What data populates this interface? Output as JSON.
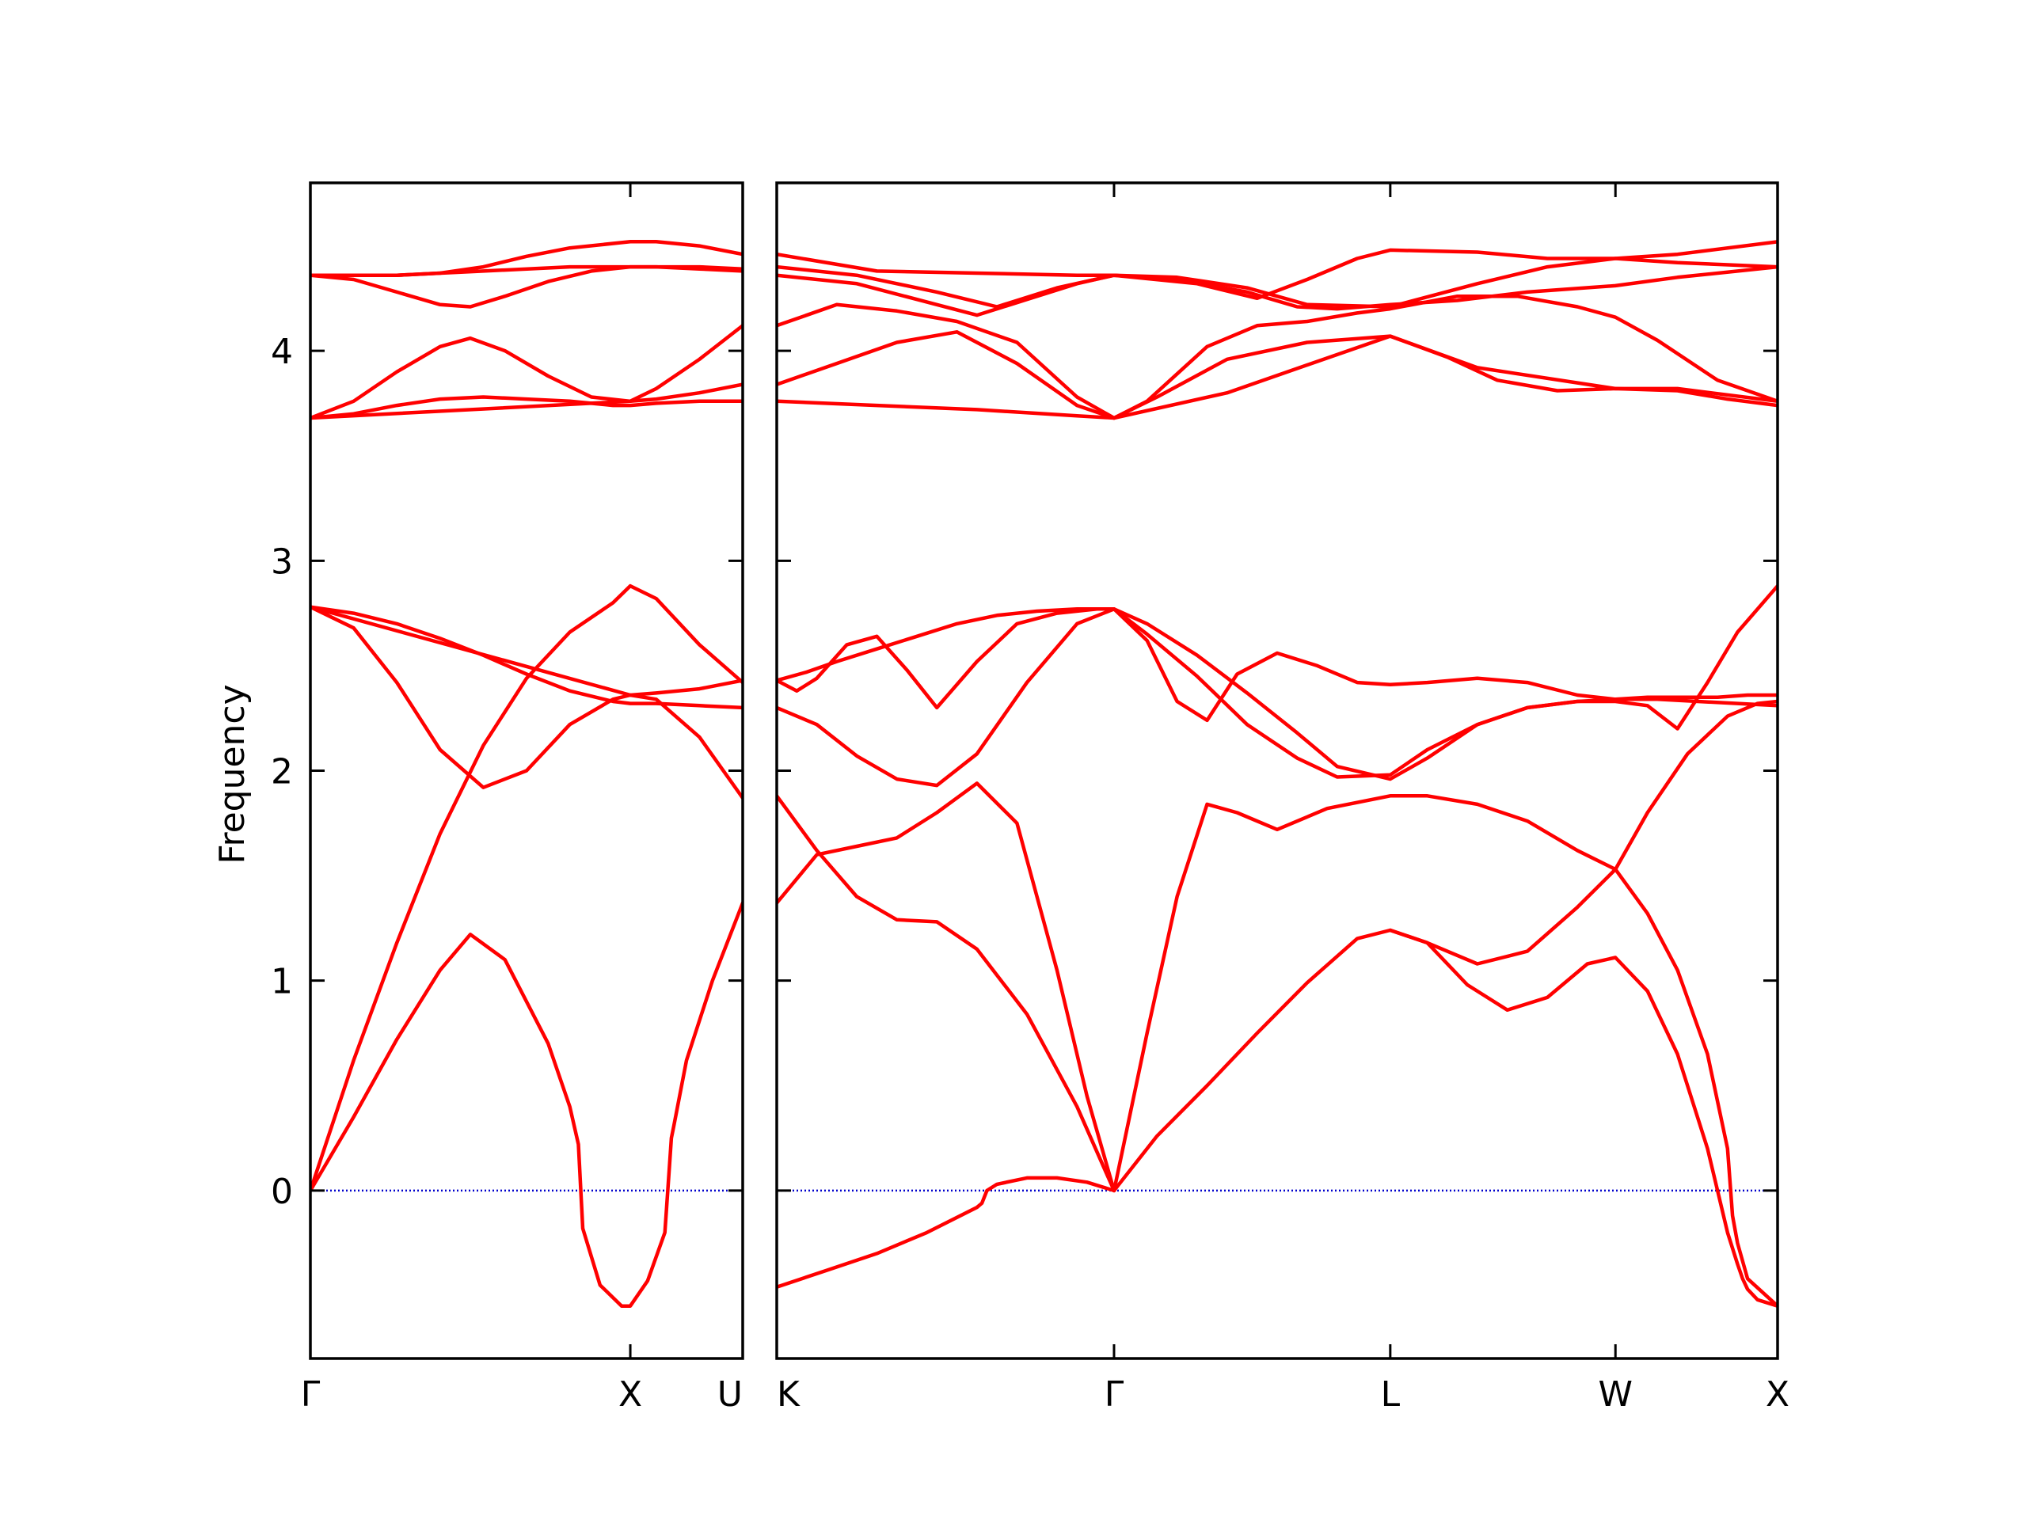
{
  "chart_data": {
    "type": "line",
    "ylabel": "Frequency",
    "xlabel": "",
    "ylim": [
      -0.8,
      4.8
    ],
    "yticks": [
      0,
      1,
      2,
      3,
      4
    ],
    "ytick_labels": [
      "0",
      "1",
      "2",
      "3",
      "4"
    ],
    "grid": false,
    "colors": {
      "band": "#ff0000",
      "zero_line": "#0000cc",
      "axes": "#000000"
    },
    "panels": [
      {
        "name": "panel-gamma-x-u",
        "xlim": [
          0,
          1
        ],
        "xticks": [
          0,
          0.74,
          1
        ],
        "xtick_labels": [
          "Γ",
          "X",
          "U"
        ],
        "bands": [
          {
            "x": [
              0,
              0.1,
              0.2,
              0.3,
              0.37,
              0.45,
              0.55,
              0.6,
              0.62,
              0.63,
              0.67,
              0.72,
              0.74,
              0.78,
              0.82,
              0.83,
              0.835,
              0.84,
              0.87,
              0.93,
              1
            ],
            "y": [
              0,
              0.35,
              0.72,
              1.05,
              1.22,
              1.1,
              0.7,
              0.4,
              0.22,
              -0.18,
              -0.45,
              -0.55,
              -0.55,
              -0.43,
              -0.2,
              0.1,
              0.25,
              0.3,
              0.62,
              1.0,
              1.37
            ]
          },
          {
            "x": [
              0,
              0.1,
              0.2,
              0.3,
              0.4,
              0.5,
              0.6,
              0.7,
              0.74,
              0.8,
              0.9,
              1
            ],
            "y": [
              0,
              0.62,
              1.18,
              1.7,
              2.12,
              2.44,
              2.66,
              2.8,
              2.88,
              2.82,
              2.6,
              2.42
            ]
          },
          {
            "x": [
              0,
              0.1,
              0.2,
              0.3,
              0.4,
              0.5,
              0.6,
              0.7,
              0.74,
              0.8,
              0.9,
              1
            ],
            "y": [
              2.78,
              2.68,
              2.42,
              2.1,
              1.92,
              2.0,
              2.22,
              2.34,
              2.36,
              2.34,
              2.16,
              1.87
            ]
          },
          {
            "x": [
              0,
              0.1,
              0.2,
              0.3,
              0.4,
              0.5,
              0.6,
              0.7,
              0.74,
              0.8,
              0.9,
              1
            ],
            "y": [
              2.78,
              2.75,
              2.7,
              2.63,
              2.55,
              2.46,
              2.38,
              2.33,
              2.32,
              2.32,
              2.31,
              2.3
            ]
          },
          {
            "x": [
              0,
              0.74,
              0.8,
              0.9,
              1
            ],
            "y": [
              2.78,
              2.36,
              2.37,
              2.39,
              2.43
            ]
          },
          {
            "x": [
              0,
              0.1,
              0.2,
              0.3,
              0.4,
              0.5,
              0.6,
              0.7,
              0.74,
              0.8,
              0.9,
              1
            ],
            "y": [
              3.68,
              3.7,
              3.74,
              3.77,
              3.78,
              3.77,
              3.76,
              3.74,
              3.74,
              3.75,
              3.76,
              3.76
            ]
          },
          {
            "x": [
              0,
              0.1,
              0.2,
              0.3,
              0.37,
              0.45,
              0.55,
              0.65,
              0.74,
              0.8,
              0.9,
              1
            ],
            "y": [
              3.68,
              3.76,
              3.9,
              4.02,
              4.06,
              4.0,
              3.88,
              3.78,
              3.76,
              3.77,
              3.8,
              3.84
            ]
          },
          {
            "x": [
              0,
              0.74,
              0.8,
              0.9,
              1
            ],
            "y": [
              3.68,
              3.76,
              3.82,
              3.96,
              4.12
            ]
          },
          {
            "x": [
              0,
              0.1,
              0.2,
              0.3,
              0.37,
              0.45,
              0.55,
              0.65,
              0.74,
              0.8,
              0.9,
              1
            ],
            "y": [
              4.36,
              4.34,
              4.28,
              4.22,
              4.21,
              4.26,
              4.33,
              4.38,
              4.4,
              4.4,
              4.39,
              4.38
            ]
          },
          {
            "x": [
              0,
              0.1,
              0.2,
              0.3,
              0.4,
              0.5,
              0.6,
              0.74,
              0.8,
              0.9,
              1
            ],
            "y": [
              4.36,
              4.36,
              4.36,
              4.37,
              4.4,
              4.45,
              4.49,
              4.52,
              4.52,
              4.5,
              4.46
            ]
          },
          {
            "x": [
              0,
              0.2,
              0.4,
              0.6,
              0.74,
              0.9,
              1
            ],
            "y": [
              4.36,
              4.36,
              4.38,
              4.4,
              4.4,
              4.4,
              4.39
            ]
          }
        ],
        "zero_line": {
          "x": [
            0,
            1
          ],
          "y": [
            0,
            0
          ]
        }
      },
      {
        "name": "panel-k-gamma-l-w-x",
        "xlim": [
          0,
          1
        ],
        "xticks": [
          0,
          0.337,
          0.613,
          0.838,
          1
        ],
        "xtick_labels": [
          "K",
          "Γ",
          "L",
          "W",
          "X"
        ],
        "bands": [
          {
            "x": [
              0,
              0.05,
              0.1,
              0.15,
              0.2,
              0.205,
              0.21,
              0.22,
              0.25,
              0.28,
              0.31,
              0.337
            ],
            "y": [
              -0.46,
              -0.38,
              -0.3,
              -0.2,
              -0.08,
              -0.06,
              0.0,
              0.03,
              0.06,
              0.06,
              0.04,
              0.0
            ]
          },
          {
            "x": [
              0.337,
              0.38,
              0.43,
              0.48,
              0.53,
              0.58,
              0.613,
              0.65,
              0.69,
              0.73,
              0.77,
              0.81,
              0.838,
              0.87,
              0.9,
              0.93,
              0.95,
              0.96,
              0.965,
              0.97,
              0.98,
              1
            ],
            "y": [
              0.0,
              0.26,
              0.5,
              0.75,
              0.99,
              1.2,
              1.24,
              1.18,
              0.98,
              0.86,
              0.92,
              1.08,
              1.11,
              0.95,
              0.65,
              0.2,
              -0.2,
              -0.35,
              -0.42,
              -0.47,
              -0.52,
              -0.55
            ]
          },
          {
            "x": [
              0,
              0.04,
              0.08,
              0.12,
              0.16,
              0.2,
              0.25,
              0.3,
              0.337
            ],
            "y": [
              1.88,
              1.62,
              1.4,
              1.29,
              1.28,
              1.15,
              0.84,
              0.4,
              0.0
            ]
          },
          {
            "x": [
              0.337,
              0.37,
              0.4,
              0.43,
              0.46,
              0.5,
              0.55,
              0.613,
              0.65,
              0.7,
              0.75,
              0.8,
              0.838,
              0.87,
              0.9,
              0.93,
              0.95,
              0.955,
              0.96,
              0.97,
              1
            ],
            "y": [
              0.0,
              0.75,
              1.4,
              1.84,
              1.8,
              1.72,
              1.82,
              1.88,
              1.88,
              1.84,
              1.76,
              1.62,
              1.53,
              1.32,
              1.05,
              0.65,
              0.2,
              -0.12,
              -0.25,
              -0.42,
              -0.55
            ]
          },
          {
            "x": [
              0.613,
              0.65,
              0.7,
              0.75,
              0.8,
              0.838,
              0.87,
              0.91,
              0.95,
              0.98,
              1
            ],
            "y": [
              1.24,
              1.18,
              1.08,
              1.14,
              1.35,
              1.53,
              1.8,
              2.08,
              2.26,
              2.32,
              2.33
            ]
          },
          {
            "x": [
              0,
              0.04,
              0.08,
              0.12,
              0.16,
              0.2,
              0.24,
              0.28,
              0.31,
              0.337
            ],
            "y": [
              1.37,
              1.6,
              1.64,
              1.68,
              1.8,
              1.94,
              1.75,
              1.05,
              0.45,
              0.0
            ]
          },
          {
            "x": [
              0,
              0.04,
              0.08,
              0.12,
              0.16,
              0.2,
              0.25,
              0.3,
              0.337,
              0.37,
              0.42,
              0.47,
              0.52,
              0.56,
              0.613,
              0.65,
              0.7,
              0.75,
              0.8,
              0.838,
              0.88,
              0.92,
              0.96,
              1
            ],
            "y": [
              2.3,
              2.22,
              2.07,
              1.96,
              1.93,
              2.08,
              2.42,
              2.7,
              2.77,
              2.65,
              2.45,
              2.22,
              2.06,
              1.97,
              1.98,
              2.1,
              2.22,
              2.3,
              2.33,
              2.34,
              2.34,
              2.33,
              2.32,
              2.31
            ]
          },
          {
            "x": [
              0,
              0.03,
              0.06,
              0.1,
              0.14,
              0.18,
              0.22,
              0.26,
              0.3,
              0.337,
              0.37,
              0.42,
              0.47,
              0.52,
              0.56,
              0.613,
              0.65,
              0.7,
              0.75,
              0.8,
              0.838,
              0.87,
              0.9,
              0.93,
              0.96,
              1
            ],
            "y": [
              2.43,
              2.47,
              2.52,
              2.58,
              2.64,
              2.7,
              2.74,
              2.76,
              2.77,
              2.77,
              2.7,
              2.55,
              2.37,
              2.18,
              2.02,
              1.96,
              2.06,
              2.22,
              2.3,
              2.33,
              2.33,
              2.31,
              2.2,
              2.42,
              2.66,
              2.88
            ]
          },
          {
            "x": [
              0,
              0.02,
              0.04,
              0.07,
              0.1,
              0.13,
              0.16,
              0.2,
              0.24,
              0.28,
              0.32,
              0.337,
              0.37,
              0.4,
              0.43,
              0.46,
              0.5,
              0.54,
              0.58,
              0.613,
              0.65,
              0.7,
              0.75,
              0.8,
              0.838,
              0.87,
              0.9,
              0.94,
              0.97,
              1
            ],
            "y": [
              2.43,
              2.38,
              2.44,
              2.6,
              2.64,
              2.48,
              2.3,
              2.52,
              2.7,
              2.75,
              2.77,
              2.77,
              2.62,
              2.33,
              2.24,
              2.46,
              2.56,
              2.5,
              2.42,
              2.41,
              2.42,
              2.44,
              2.42,
              2.36,
              2.34,
              2.35,
              2.35,
              2.35,
              2.36,
              2.36
            ]
          },
          {
            "x": [
              0,
              0.1,
              0.2,
              0.3,
              0.337,
              0.45,
              0.613,
              0.7,
              0.838,
              0.9,
              1
            ],
            "y": [
              3.76,
              3.74,
              3.72,
              3.69,
              3.68,
              3.8,
              4.07,
              3.92,
              3.82,
              3.82,
              3.76
            ]
          },
          {
            "x": [
              0,
              0.06,
              0.12,
              0.18,
              0.24,
              0.3,
              0.337,
              0.38,
              0.45,
              0.53,
              0.613,
              0.67,
              0.72,
              0.78,
              0.838,
              0.9,
              0.95,
              1
            ],
            "y": [
              3.84,
              3.94,
              4.04,
              4.09,
              3.94,
              3.74,
              3.68,
              3.78,
              3.96,
              4.04,
              4.07,
              3.97,
              3.86,
              3.81,
              3.82,
              3.81,
              3.77,
              3.74
            ]
          },
          {
            "x": [
              0,
              0.06,
              0.12,
              0.18,
              0.24,
              0.3,
              0.337,
              0.37,
              0.43,
              0.48,
              0.53,
              0.58,
              0.613,
              0.68,
              0.74,
              0.8,
              0.838,
              0.88,
              0.94,
              1
            ],
            "y": [
              4.12,
              4.22,
              4.19,
              4.14,
              4.04,
              3.78,
              3.68,
              3.76,
              4.02,
              4.12,
              4.14,
              4.18,
              4.2,
              4.26,
              4.26,
              4.21,
              4.16,
              4.05,
              3.86,
              3.76
            ]
          },
          {
            "x": [
              0,
              0.08,
              0.16,
              0.2,
              0.24,
              0.3,
              0.337,
              0.4,
              0.47,
              0.52,
              0.56,
              0.613,
              0.68,
              0.75,
              0.838,
              0.9,
              1
            ],
            "y": [
              4.36,
              4.32,
              4.22,
              4.17,
              4.23,
              4.32,
              4.36,
              4.34,
              4.28,
              4.21,
              4.2,
              4.22,
              4.24,
              4.28,
              4.31,
              4.35,
              4.4
            ]
          },
          {
            "x": [
              0,
              0.08,
              0.16,
              0.22,
              0.28,
              0.337,
              0.4,
              0.47,
              0.53,
              0.613,
              0.7,
              0.77,
              0.838,
              0.9,
              1
            ],
            "y": [
              4.4,
              4.36,
              4.28,
              4.21,
              4.3,
              4.36,
              4.35,
              4.3,
              4.22,
              4.21,
              4.32,
              4.4,
              4.44,
              4.46,
              4.52
            ]
          },
          {
            "x": [
              0,
              0.1,
              0.2,
              0.3,
              0.337,
              0.42,
              0.48,
              0.53,
              0.58,
              0.613,
              0.7,
              0.77,
              0.838,
              0.9,
              1
            ],
            "y": [
              4.46,
              4.38,
              4.37,
              4.36,
              4.36,
              4.32,
              4.25,
              4.34,
              4.44,
              4.48,
              4.47,
              4.44,
              4.44,
              4.42,
              4.4
            ]
          }
        ],
        "zero_line": {
          "x": [
            0,
            1
          ],
          "y": [
            0,
            0
          ]
        }
      }
    ]
  }
}
